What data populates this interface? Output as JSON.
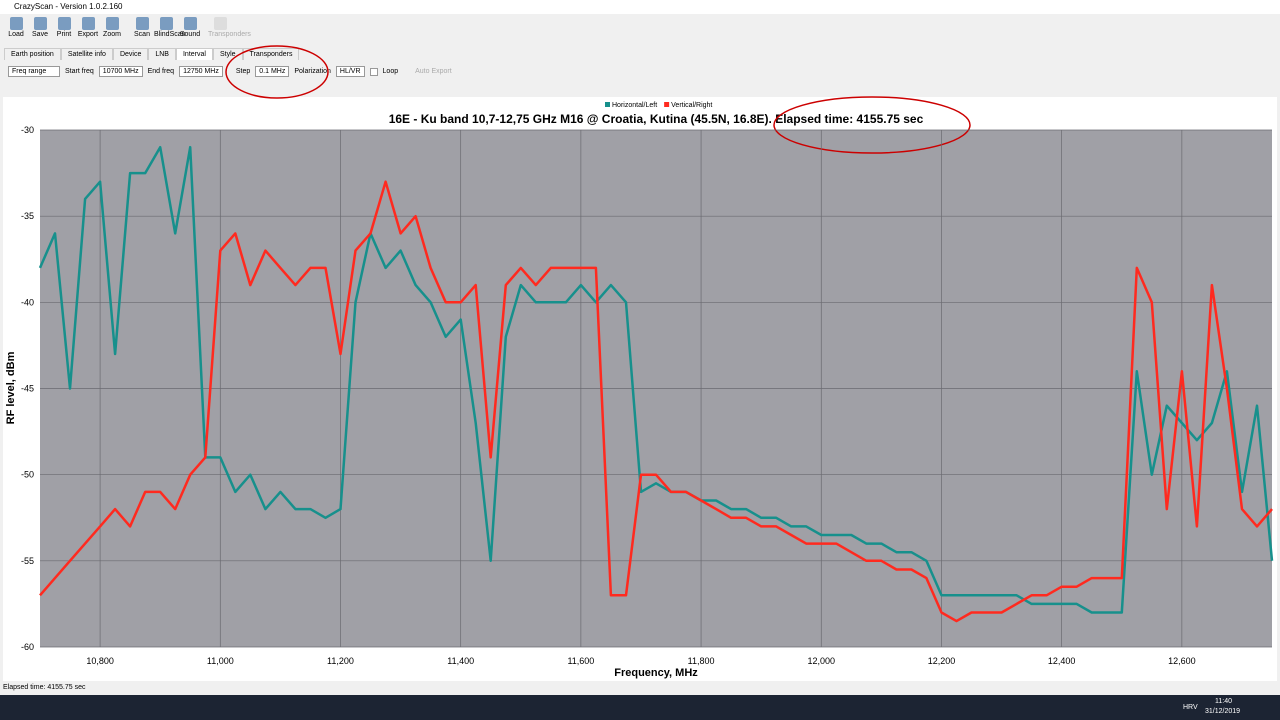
{
  "window": {
    "title": "CrazyScan - Version 1.0.2.160"
  },
  "toolbar": [
    "Load",
    "Save",
    "Print",
    "Export",
    "Zoom",
    "Scan",
    "BlindScan",
    "Sound",
    "Transponders"
  ],
  "tabs": [
    "Earth position",
    "Satellite info",
    "Device",
    "LNB",
    "Interval",
    "Style",
    "Transponders"
  ],
  "controls": {
    "mode": "Freq range",
    "start_label": "Start freq",
    "start_value": "10700 MHz",
    "end_label": "End freq",
    "end_value": "12750 MHz",
    "step_label": "Step",
    "step_value": "0.1 MHz",
    "pol_label": "Polarization",
    "pol_value": "HL/VR",
    "loop": "Loop",
    "auto_export": "Auto Export"
  },
  "chart_data": {
    "type": "line",
    "title": "16E - Ku band 10,7-12,75 GHz M16  @ Croatia, Kutina (45.5N, 16.8E). Elapsed time: 4155.75 sec",
    "x_label": "Frequency, MHz",
    "y_label": "RF level, dBm",
    "x": [
      10700,
      10725,
      10750,
      10775,
      10800,
      10825,
      10850,
      10875,
      10900,
      10925,
      10950,
      10975,
      11000,
      11025,
      11050,
      11075,
      11100,
      11125,
      11150,
      11175,
      11200,
      11225,
      11250,
      11275,
      11300,
      11325,
      11350,
      11375,
      11400,
      11425,
      11450,
      11475,
      11500,
      11525,
      11550,
      11575,
      11600,
      11625,
      11650,
      11675,
      11700,
      11725,
      11750,
      11775,
      11800,
      11825,
      11850,
      11875,
      11900,
      11925,
      11950,
      11975,
      12000,
      12025,
      12050,
      12075,
      12100,
      12125,
      12150,
      12175,
      12200,
      12225,
      12250,
      12275,
      12300,
      12325,
      12350,
      12375,
      12400,
      12425,
      12450,
      12475,
      12500,
      12525,
      12550,
      12575,
      12600,
      12625,
      12650,
      12675,
      12700,
      12725,
      12750
    ],
    "series": [
      {
        "name": "Horizontal/Left",
        "color": "#17908c",
        "values": [
          -38,
          -36,
          -45,
          -34,
          -33,
          -43,
          -32.5,
          -32.5,
          -31,
          -36,
          -31,
          -49,
          -49,
          -51,
          -50,
          -52,
          -51,
          -52,
          -52,
          -52.5,
          -52,
          -40,
          -36,
          -38,
          -37,
          -39,
          -40,
          -42,
          -41,
          -47,
          -55,
          -42,
          -39,
          -40,
          -40,
          -40,
          -39,
          -40,
          -39,
          -40,
          -51,
          -50.5,
          -51,
          -51,
          -51.5,
          -51.5,
          -52,
          -52,
          -52.5,
          -52.5,
          -53,
          -53,
          -53.5,
          -53.5,
          -53.5,
          -54,
          -54,
          -54.5,
          -54.5,
          -55,
          -57,
          -57,
          -57,
          -57,
          -57,
          -57,
          -57.5,
          -57.5,
          -57.5,
          -57.5,
          -58,
          -58,
          -58,
          -44,
          -50,
          -46,
          -47,
          -48,
          -47,
          -44,
          -51,
          -46,
          -55
        ]
      },
      {
        "name": "Vertical/Right",
        "color": "#ff2a1f",
        "values": [
          -57,
          -56,
          -55,
          -54,
          -53,
          -52,
          -53,
          -51,
          -51,
          -52,
          -50,
          -49,
          -37,
          -36,
          -39,
          -37,
          -38,
          -39,
          -38,
          -38,
          -43,
          -37,
          -36,
          -33,
          -36,
          -35,
          -38,
          -40,
          -40,
          -39,
          -49,
          -39,
          -38,
          -39,
          -38,
          -38,
          -38,
          -38,
          -57,
          -57,
          -50,
          -50,
          -51,
          -51,
          -51.5,
          -52,
          -52.5,
          -52.5,
          -53,
          -53,
          -53.5,
          -54,
          -54,
          -54,
          -54.5,
          -55,
          -55,
          -55.5,
          -55.5,
          -56,
          -58,
          -58.5,
          -58,
          -58,
          -58,
          -57.5,
          -57,
          -57,
          -56.5,
          -56.5,
          -56,
          -56,
          -56,
          -38,
          -40,
          -52,
          -44,
          -53,
          -39,
          -45,
          -52,
          -53,
          -52
        ]
      }
    ],
    "xlim": [
      10700,
      12750
    ],
    "ylim": [
      -60,
      -30
    ],
    "xticks": [
      {
        "value": 10800,
        "label": "10,800"
      },
      {
        "value": 11000,
        "label": "11,000"
      },
      {
        "value": 11200,
        "label": "11,200"
      },
      {
        "value": 11400,
        "label": "11,400"
      },
      {
        "value": 11600,
        "label": "11,600"
      },
      {
        "value": 11800,
        "label": "11,800"
      },
      {
        "value": 12000,
        "label": "12,000"
      },
      {
        "value": 12200,
        "label": "12,200"
      },
      {
        "value": 12400,
        "label": "12,400"
      },
      {
        "value": 12600,
        "label": "12,600"
      }
    ],
    "yticks": [
      -30,
      -35,
      -40,
      -45,
      -50,
      -55,
      -60
    ],
    "grid": true
  },
  "status": "Elapsed time: 4155.75 sec",
  "taskbar": {
    "lang": "HRV",
    "time": "11:40",
    "date": "31/12/2019"
  }
}
